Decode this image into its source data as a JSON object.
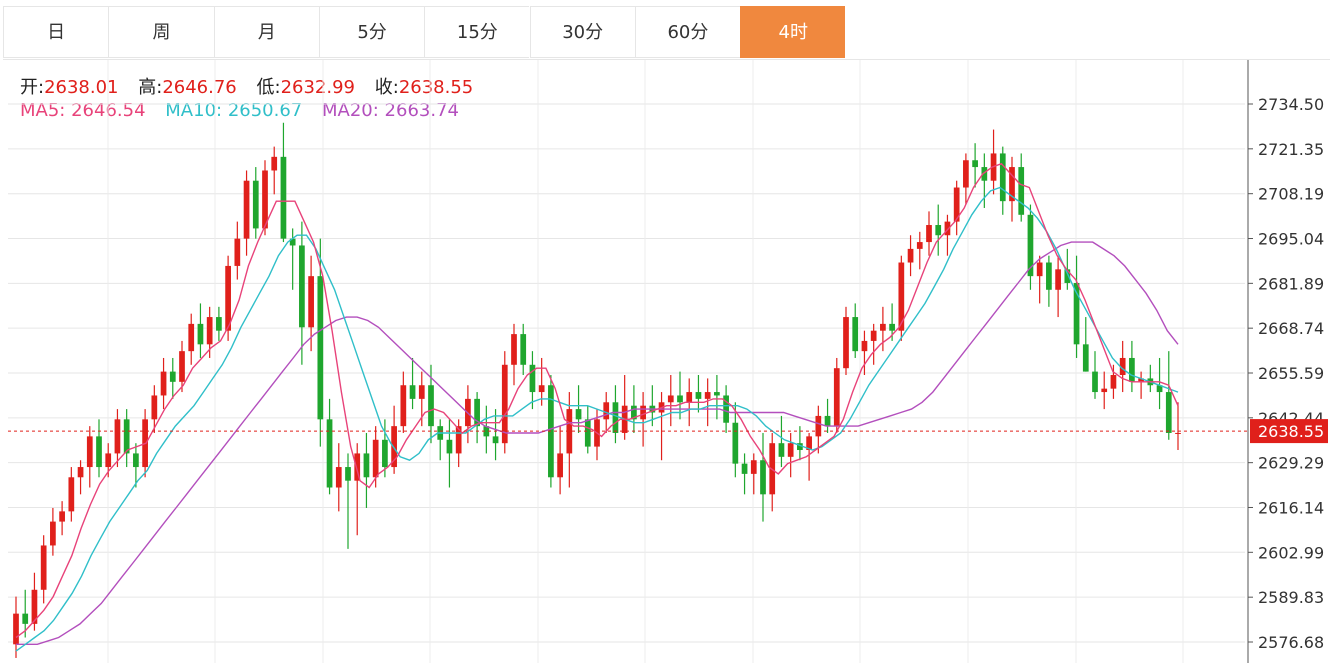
{
  "tabs": [
    {
      "label": "日",
      "active": false
    },
    {
      "label": "周",
      "active": false
    },
    {
      "label": "月",
      "active": false
    },
    {
      "label": "5分",
      "active": false
    },
    {
      "label": "15分",
      "active": false
    },
    {
      "label": "30分",
      "active": false
    },
    {
      "label": "60分",
      "active": false
    },
    {
      "label": "4时",
      "active": true
    }
  ],
  "ohlc": {
    "open_label": "开:",
    "open": "2638.01",
    "high_label": "高:",
    "high": "2646.76",
    "low_label": "低:",
    "low": "2632.99",
    "close_label": "收:",
    "close": "2638.55"
  },
  "ma": {
    "ma5_label": "MA5:",
    "ma5": "2646.54",
    "ma10_label": "MA10:",
    "ma10": "2650.67",
    "ma20_label": "MA20:",
    "ma20": "2663.74"
  },
  "colors": {
    "up": "#e0201b",
    "down": "#1fa62e",
    "ma5": "#e8437a",
    "ma10": "#30bfc9",
    "ma20": "#b34fbd",
    "active_tab": "#f0883e"
  },
  "chart_data": {
    "type": "candlestick",
    "y_ticks": [
      "2734.50",
      "2721.35",
      "2708.19",
      "2695.04",
      "2681.89",
      "2668.74",
      "2655.59",
      "2642.44",
      "2629.29",
      "2616.14",
      "2602.99",
      "2589.83",
      "2576.68"
    ],
    "ylim": [
      2574,
      2742
    ],
    "last_price": "2638.55",
    "grid": true,
    "candles": [
      [
        2576,
        2590,
        2572,
        2585
      ],
      [
        2585,
        2592,
        2578,
        2582
      ],
      [
        2582,
        2597,
        2580,
        2592
      ],
      [
        2592,
        2608,
        2588,
        2605
      ],
      [
        2605,
        2616,
        2602,
        2612
      ],
      [
        2612,
        2618,
        2608,
        2615
      ],
      [
        2615,
        2628,
        2612,
        2625
      ],
      [
        2625,
        2630,
        2620,
        2628
      ],
      [
        2628,
        2640,
        2622,
        2637
      ],
      [
        2637,
        2642,
        2625,
        2628
      ],
      [
        2628,
        2635,
        2625,
        2632
      ],
      [
        2632,
        2645,
        2628,
        2642
      ],
      [
        2642,
        2645,
        2628,
        2632
      ],
      [
        2632,
        2635,
        2622,
        2628
      ],
      [
        2628,
        2645,
        2625,
        2642
      ],
      [
        2642,
        2652,
        2638,
        2649
      ],
      [
        2649,
        2660,
        2645,
        2656
      ],
      [
        2656,
        2660,
        2648,
        2653
      ],
      [
        2653,
        2665,
        2650,
        2662
      ],
      [
        2662,
        2673,
        2658,
        2670
      ],
      [
        2670,
        2676,
        2660,
        2664
      ],
      [
        2664,
        2675,
        2660,
        2672
      ],
      [
        2672,
        2675,
        2665,
        2668
      ],
      [
        2668,
        2690,
        2665,
        2687
      ],
      [
        2687,
        2700,
        2683,
        2695
      ],
      [
        2695,
        2715,
        2690,
        2712
      ],
      [
        2712,
        2716,
        2695,
        2698
      ],
      [
        2698,
        2718,
        2696,
        2715
      ],
      [
        2715,
        2722,
        2708,
        2719
      ],
      [
        2719,
        2729,
        2694,
        2695
      ],
      [
        2695,
        2698,
        2680,
        2693
      ],
      [
        2693,
        2700,
        2658,
        2669
      ],
      [
        2669,
        2690,
        2662,
        2684
      ],
      [
        2684,
        2695,
        2634,
        2642
      ],
      [
        2642,
        2648,
        2620,
        2622
      ],
      [
        2622,
        2635,
        2615,
        2628
      ],
      [
        2628,
        2632,
        2604,
        2624
      ],
      [
        2624,
        2635,
        2608,
        2632
      ],
      [
        2632,
        2638,
        2616,
        2625
      ],
      [
        2625,
        2640,
        2622,
        2636
      ],
      [
        2636,
        2642,
        2625,
        2628
      ],
      [
        2628,
        2646,
        2626,
        2640
      ],
      [
        2640,
        2656,
        2638,
        2652
      ],
      [
        2652,
        2660,
        2645,
        2648
      ],
      [
        2648,
        2656,
        2640,
        2652
      ],
      [
        2652,
        2658,
        2635,
        2640
      ],
      [
        2640,
        2642,
        2630,
        2636
      ],
      [
        2636,
        2642,
        2622,
        2632
      ],
      [
        2632,
        2642,
        2628,
        2640
      ],
      [
        2640,
        2652,
        2635,
        2648
      ],
      [
        2648,
        2650,
        2635,
        2640
      ],
      [
        2640,
        2646,
        2632,
        2637
      ],
      [
        2637,
        2645,
        2630,
        2635
      ],
      [
        2635,
        2662,
        2632,
        2658
      ],
      [
        2658,
        2670,
        2652,
        2667
      ],
      [
        2667,
        2670,
        2655,
        2658
      ],
      [
        2658,
        2662,
        2645,
        2650
      ],
      [
        2650,
        2660,
        2646,
        2652
      ],
      [
        2652,
        2655,
        2622,
        2625
      ],
      [
        2625,
        2640,
        2620,
        2632
      ],
      [
        2632,
        2650,
        2622,
        2645
      ],
      [
        2645,
        2652,
        2638,
        2642
      ],
      [
        2642,
        2646,
        2632,
        2634
      ],
      [
        2634,
        2645,
        2630,
        2642
      ],
      [
        2642,
        2650,
        2638,
        2647
      ],
      [
        2647,
        2652,
        2635,
        2638
      ],
      [
        2638,
        2655,
        2636,
        2646
      ],
      [
        2646,
        2652,
        2638,
        2642
      ],
      [
        2642,
        2650,
        2634,
        2646
      ],
      [
        2646,
        2652,
        2640,
        2644
      ],
      [
        2644,
        2650,
        2630,
        2647
      ],
      [
        2647,
        2655,
        2640,
        2649
      ],
      [
        2649,
        2656,
        2642,
        2647
      ],
      [
        2647,
        2654,
        2640,
        2650
      ],
      [
        2650,
        2655,
        2644,
        2648
      ],
      [
        2648,
        2654,
        2640,
        2650
      ],
      [
        2650,
        2655,
        2642,
        2649
      ],
      [
        2649,
        2652,
        2638,
        2641
      ],
      [
        2641,
        2647,
        2625,
        2629
      ],
      [
        2629,
        2632,
        2620,
        2626
      ],
      [
        2626,
        2632,
        2620,
        2630
      ],
      [
        2630,
        2638,
        2612,
        2620
      ],
      [
        2620,
        2638,
        2615,
        2635
      ],
      [
        2635,
        2643,
        2628,
        2631
      ],
      [
        2631,
        2638,
        2625,
        2635
      ],
      [
        2635,
        2640,
        2630,
        2633
      ],
      [
        2633,
        2638,
        2624,
        2637
      ],
      [
        2637,
        2646,
        2632,
        2643
      ],
      [
        2643,
        2648,
        2638,
        2640
      ],
      [
        2640,
        2660,
        2638,
        2657
      ],
      [
        2657,
        2675,
        2655,
        2672
      ],
      [
        2672,
        2676,
        2660,
        2662
      ],
      [
        2662,
        2668,
        2655,
        2665
      ],
      [
        2665,
        2670,
        2658,
        2668
      ],
      [
        2668,
        2675,
        2662,
        2670
      ],
      [
        2670,
        2676,
        2665,
        2668
      ],
      [
        2668,
        2690,
        2665,
        2688
      ],
      [
        2688,
        2696,
        2684,
        2692
      ],
      [
        2692,
        2697,
        2686,
        2694
      ],
      [
        2694,
        2703,
        2690,
        2699
      ],
      [
        2699,
        2705,
        2690,
        2696
      ],
      [
        2696,
        2702,
        2690,
        2700
      ],
      [
        2700,
        2712,
        2696,
        2710
      ],
      [
        2710,
        2720,
        2705,
        2718
      ],
      [
        2718,
        2723,
        2710,
        2716
      ],
      [
        2716,
        2720,
        2704,
        2712
      ],
      [
        2712,
        2727,
        2708,
        2720
      ],
      [
        2720,
        2722,
        2702,
        2706
      ],
      [
        2706,
        2719,
        2700,
        2716
      ],
      [
        2716,
        2720,
        2700,
        2702
      ],
      [
        2702,
        2705,
        2680,
        2684
      ],
      [
        2684,
        2690,
        2676,
        2688
      ],
      [
        2688,
        2690,
        2675,
        2680
      ],
      [
        2680,
        2690,
        2672,
        2686
      ],
      [
        2686,
        2692,
        2680,
        2682
      ],
      [
        2682,
        2690,
        2660,
        2664
      ],
      [
        2664,
        2672,
        2656,
        2656
      ],
      [
        2656,
        2662,
        2648,
        2650
      ],
      [
        2650,
        2656,
        2645,
        2651
      ],
      [
        2651,
        2658,
        2648,
        2655
      ],
      [
        2655,
        2665,
        2650,
        2660
      ],
      [
        2660,
        2665,
        2650,
        2653
      ],
      [
        2653,
        2656,
        2648,
        2654
      ],
      [
        2654,
        2658,
        2650,
        2652
      ],
      [
        2652,
        2660,
        2645,
        2650
      ],
      [
        2650,
        2662,
        2636,
        2638
      ],
      [
        2638,
        2647,
        2633,
        2638
      ]
    ],
    "ma5": [
      2578,
      2580,
      2583,
      2586,
      2590,
      2596,
      2602,
      2610,
      2617,
      2623,
      2627,
      2630,
      2633,
      2634,
      2635,
      2640,
      2645,
      2649,
      2652,
      2657,
      2660,
      2663,
      2665,
      2670,
      2677,
      2687,
      2694,
      2700,
      2706,
      2706,
      2706,
      2700,
      2694,
      2684,
      2668,
      2650,
      2634,
      2624,
      2622,
      2626,
      2628,
      2631,
      2636,
      2640,
      2644,
      2645,
      2644,
      2641,
      2638,
      2640,
      2641,
      2641,
      2641,
      2645,
      2651,
      2655,
      2657,
      2657,
      2651,
      2642,
      2640,
      2640,
      2639,
      2637,
      2640,
      2642,
      2642,
      2643,
      2644,
      2645,
      2646,
      2646,
      2647,
      2647,
      2647,
      2648,
      2648,
      2646,
      2642,
      2637,
      2633,
      2628,
      2626,
      2629,
      2630,
      2631,
      2633,
      2635,
      2637,
      2642,
      2650,
      2657,
      2661,
      2664,
      2666,
      2669,
      2674,
      2681,
      2688,
      2694,
      2697,
      2700,
      2704,
      2710,
      2714,
      2716,
      2717,
      2714,
      2711,
      2710,
      2703,
      2696,
      2690,
      2686,
      2683,
      2677,
      2670,
      2663,
      2656,
      2654,
      2653,
      2653,
      2653,
      2653,
      2652,
      2646
    ],
    "ma10": [
      2574,
      2576,
      2578,
      2580,
      2583,
      2587,
      2591,
      2596,
      2602,
      2607,
      2612,
      2616,
      2620,
      2624,
      2627,
      2632,
      2636,
      2640,
      2643,
      2646,
      2650,
      2654,
      2658,
      2663,
      2669,
      2674,
      2679,
      2684,
      2690,
      2694,
      2696,
      2696,
      2692,
      2686,
      2680,
      2672,
      2664,
      2656,
      2648,
      2640,
      2635,
      2631,
      2630,
      2632,
      2636,
      2638,
      2638,
      2638,
      2638,
      2640,
      2642,
      2643,
      2643,
      2643,
      2645,
      2647,
      2648,
      2648,
      2647,
      2646,
      2646,
      2646,
      2645,
      2644,
      2643,
      2642,
      2641,
      2641,
      2642,
      2643,
      2644,
      2644,
      2645,
      2645,
      2646,
      2646,
      2646,
      2646,
      2645,
      2643,
      2640,
      2638,
      2636,
      2635,
      2634,
      2633,
      2634,
      2636,
      2638,
      2642,
      2647,
      2652,
      2656,
      2660,
      2664,
      2668,
      2672,
      2676,
      2681,
      2686,
      2692,
      2697,
      2702,
      2706,
      2709,
      2710,
      2708,
      2706,
      2704,
      2701,
      2697,
      2692,
      2686,
      2680,
      2675,
      2670,
      2665,
      2660,
      2657,
      2655,
      2654,
      2653,
      2652,
      2651,
      2650
    ],
    "ma20": [
      2576,
      2576,
      2576,
      2577,
      2578,
      2580,
      2582,
      2585,
      2588,
      2592,
      2596,
      2600,
      2604,
      2608,
      2612,
      2616,
      2620,
      2624,
      2628,
      2632,
      2636,
      2640,
      2644,
      2648,
      2652,
      2656,
      2660,
      2664,
      2667,
      2669,
      2671,
      2672,
      2672,
      2671,
      2669,
      2666,
      2663,
      2660,
      2657,
      2654,
      2651,
      2648,
      2645,
      2642,
      2640,
      2639,
      2638,
      2638,
      2638,
      2638,
      2639,
      2640,
      2641,
      2641,
      2642,
      2643,
      2644,
      2644,
      2645,
      2645,
      2645,
      2645,
      2645,
      2645,
      2645,
      2645,
      2645,
      2644,
      2644,
      2644,
      2644,
      2644,
      2644,
      2643,
      2642,
      2641,
      2640,
      2640,
      2640,
      2640,
      2641,
      2642,
      2643,
      2644,
      2645,
      2647,
      2650,
      2654,
      2658,
      2662,
      2666,
      2670,
      2674,
      2678,
      2682,
      2686,
      2689,
      2691,
      2693,
      2694,
      2694,
      2694,
      2692,
      2690,
      2687,
      2683,
      2679,
      2674,
      2668,
      2664
    ]
  }
}
